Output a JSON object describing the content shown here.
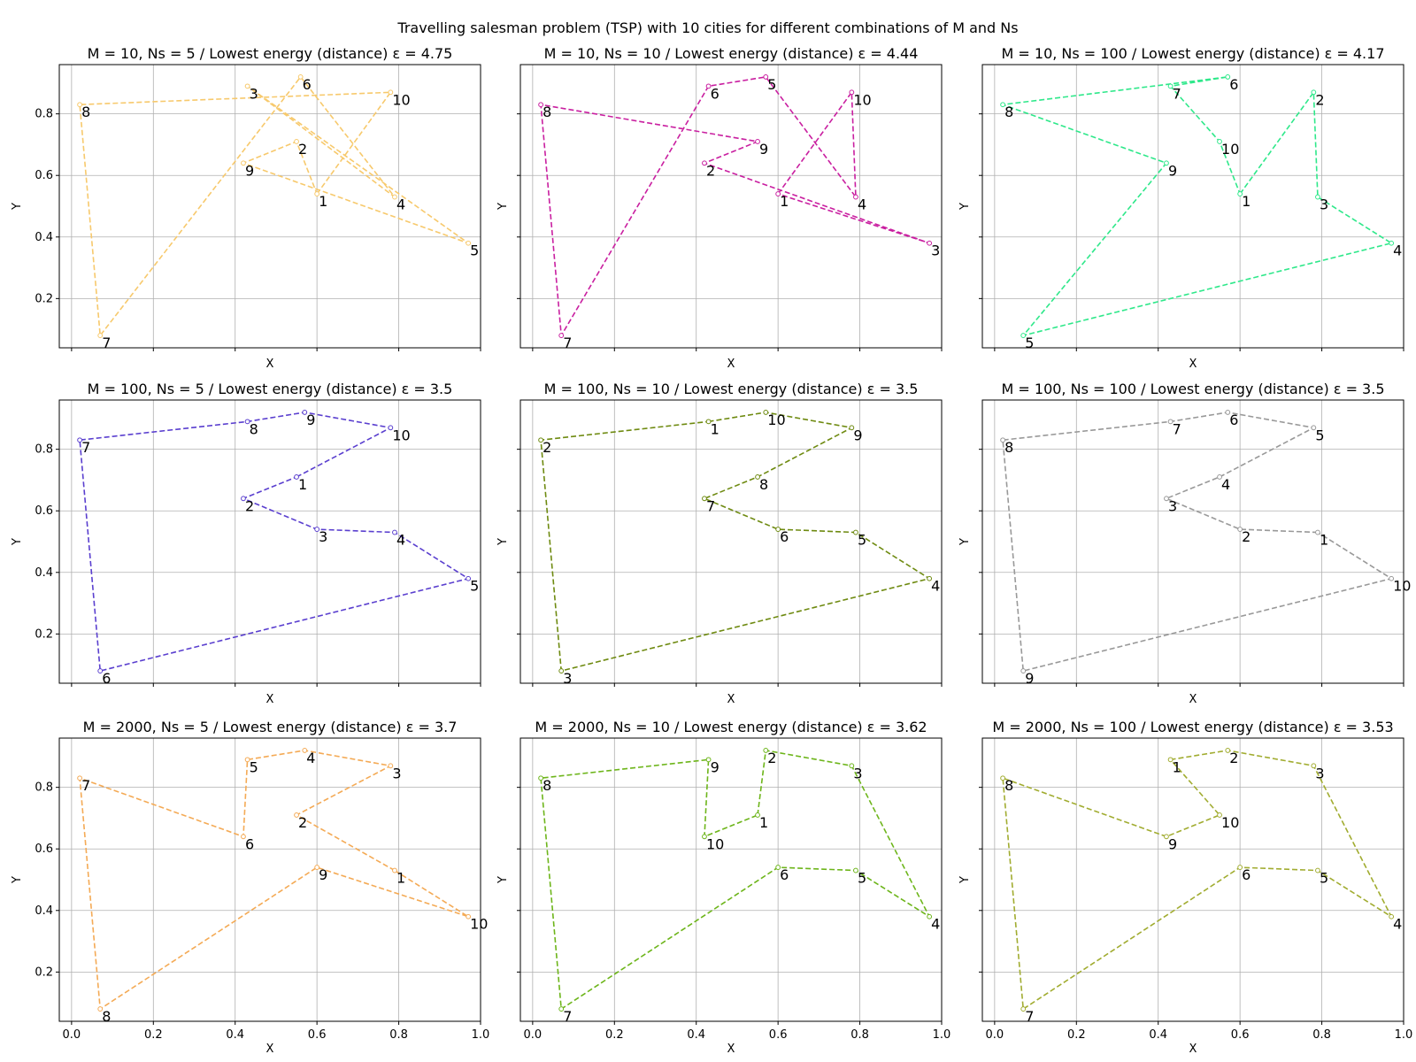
{
  "figure": {
    "title": "Travelling salesman problem (TSP) with 10 cities for different combinations of M and Ns",
    "x_ticks": [
      "0.0",
      "0.2",
      "0.4",
      "0.6",
      "0.8",
      "1.0"
    ],
    "y_ticks": [
      "0.2",
      "0.4",
      "0.6",
      "0.8"
    ]
  },
  "chart_data": [
    {
      "type": "line",
      "title": "M = 10, Ns = 5 / Lowest energy (distance) ε = 4.75",
      "xlabel": "X",
      "ylabel": "Y",
      "grid": true,
      "xlim": [
        -0.03,
        1.0
      ],
      "ylim": [
        0.04,
        0.96
      ],
      "color": "#f7c96c",
      "points": [
        {
          "label": "1",
          "x": 0.6,
          "y": 0.54
        },
        {
          "label": "10",
          "x": 0.78,
          "y": 0.87
        },
        {
          "label": "8",
          "x": 0.02,
          "y": 0.83
        },
        {
          "label": "7",
          "x": 0.07,
          "y": 0.08
        },
        {
          "label": "6",
          "x": 0.56,
          "y": 0.92
        },
        {
          "label": "4",
          "x": 0.79,
          "y": 0.53
        },
        {
          "label": "3",
          "x": 0.43,
          "y": 0.89
        },
        {
          "label": "5",
          "x": 0.97,
          "y": 0.38
        },
        {
          "label": "9",
          "x": 0.42,
          "y": 0.64
        },
        {
          "label": "2",
          "x": 0.55,
          "y": 0.71
        }
      ]
    },
    {
      "type": "line",
      "title": "M = 10, Ns = 10 / Lowest energy (distance) ε = 4.44",
      "xlabel": "X",
      "ylabel": "Y",
      "grid": true,
      "xlim": [
        -0.03,
        1.0
      ],
      "ylim": [
        0.04,
        0.96
      ],
      "color": "#c91fa0",
      "points": [
        {
          "label": "1",
          "x": 0.6,
          "y": 0.54
        },
        {
          "label": "10",
          "x": 0.78,
          "y": 0.87
        },
        {
          "label": "4",
          "x": 0.79,
          "y": 0.53
        },
        {
          "label": "5",
          "x": 0.57,
          "y": 0.92
        },
        {
          "label": "6",
          "x": 0.43,
          "y": 0.89
        },
        {
          "label": "7",
          "x": 0.07,
          "y": 0.08
        },
        {
          "label": "8",
          "x": 0.02,
          "y": 0.83
        },
        {
          "label": "9",
          "x": 0.55,
          "y": 0.71
        },
        {
          "label": "2",
          "x": 0.42,
          "y": 0.64
        },
        {
          "label": "3",
          "x": 0.97,
          "y": 0.38
        }
      ]
    },
    {
      "type": "line",
      "title": "M = 10, Ns = 100 / Lowest energy (distance) ε = 4.17",
      "xlabel": "X",
      "ylabel": "Y",
      "grid": true,
      "xlim": [
        -0.03,
        1.0
      ],
      "ylim": [
        0.04,
        0.96
      ],
      "color": "#2ee88a",
      "points": [
        {
          "label": "1",
          "x": 0.6,
          "y": 0.54
        },
        {
          "label": "2",
          "x": 0.78,
          "y": 0.87
        },
        {
          "label": "3",
          "x": 0.79,
          "y": 0.53
        },
        {
          "label": "4",
          "x": 0.97,
          "y": 0.38
        },
        {
          "label": "5",
          "x": 0.07,
          "y": 0.08
        },
        {
          "label": "9",
          "x": 0.42,
          "y": 0.64
        },
        {
          "label": "8",
          "x": 0.02,
          "y": 0.83
        },
        {
          "label": "6",
          "x": 0.57,
          "y": 0.92
        },
        {
          "label": "7",
          "x": 0.43,
          "y": 0.89
        },
        {
          "label": "10",
          "x": 0.55,
          "y": 0.71
        }
      ]
    },
    {
      "type": "line",
      "title": "M = 100, Ns = 5 / Lowest energy (distance) ε = 3.5",
      "xlabel": "X",
      "ylabel": "Y",
      "grid": true,
      "xlim": [
        -0.03,
        1.0
      ],
      "ylim": [
        0.04,
        0.96
      ],
      "color": "#5a3fcf",
      "points": [
        {
          "label": "1",
          "x": 0.55,
          "y": 0.71
        },
        {
          "label": "10",
          "x": 0.78,
          "y": 0.87
        },
        {
          "label": "9",
          "x": 0.57,
          "y": 0.92
        },
        {
          "label": "8",
          "x": 0.43,
          "y": 0.89
        },
        {
          "label": "7",
          "x": 0.02,
          "y": 0.83
        },
        {
          "label": "6",
          "x": 0.07,
          "y": 0.08
        },
        {
          "label": "5",
          "x": 0.97,
          "y": 0.38
        },
        {
          "label": "4",
          "x": 0.79,
          "y": 0.53
        },
        {
          "label": "3",
          "x": 0.6,
          "y": 0.54
        },
        {
          "label": "2",
          "x": 0.42,
          "y": 0.64
        }
      ]
    },
    {
      "type": "line",
      "title": "M = 100, Ns = 10 / Lowest energy (distance) ε = 3.5",
      "xlabel": "X",
      "ylabel": "Y",
      "grid": true,
      "xlim": [
        -0.03,
        1.0
      ],
      "ylim": [
        0.04,
        0.96
      ],
      "color": "#6e8a10",
      "points": [
        {
          "label": "1",
          "x": 0.43,
          "y": 0.89
        },
        {
          "label": "10",
          "x": 0.57,
          "y": 0.92
        },
        {
          "label": "9",
          "x": 0.78,
          "y": 0.87
        },
        {
          "label": "8",
          "x": 0.55,
          "y": 0.71
        },
        {
          "label": "7",
          "x": 0.42,
          "y": 0.64
        },
        {
          "label": "6",
          "x": 0.6,
          "y": 0.54
        },
        {
          "label": "5",
          "x": 0.79,
          "y": 0.53
        },
        {
          "label": "4",
          "x": 0.97,
          "y": 0.38
        },
        {
          "label": "3",
          "x": 0.07,
          "y": 0.08
        },
        {
          "label": "2",
          "x": 0.02,
          "y": 0.83
        }
      ]
    },
    {
      "type": "line",
      "title": "M = 100, Ns = 100 / Lowest energy (distance) ε = 3.5",
      "xlabel": "X",
      "ylabel": "Y",
      "grid": true,
      "xlim": [
        -0.03,
        1.0
      ],
      "ylim": [
        0.04,
        0.96
      ],
      "color": "#999999",
      "points": [
        {
          "label": "1",
          "x": 0.79,
          "y": 0.53
        },
        {
          "label": "2",
          "x": 0.6,
          "y": 0.54
        },
        {
          "label": "3",
          "x": 0.42,
          "y": 0.64
        },
        {
          "label": "4",
          "x": 0.55,
          "y": 0.71
        },
        {
          "label": "5",
          "x": 0.78,
          "y": 0.87
        },
        {
          "label": "6",
          "x": 0.57,
          "y": 0.92
        },
        {
          "label": "7",
          "x": 0.43,
          "y": 0.89
        },
        {
          "label": "8",
          "x": 0.02,
          "y": 0.83
        },
        {
          "label": "9",
          "x": 0.07,
          "y": 0.08
        },
        {
          "label": "10",
          "x": 0.97,
          "y": 0.38
        }
      ]
    },
    {
      "type": "line",
      "title": "M = 2000, Ns = 5 / Lowest energy (distance) ε = 3.7",
      "xlabel": "X",
      "ylabel": "Y",
      "grid": true,
      "xlim": [
        -0.03,
        1.0
      ],
      "ylim": [
        0.04,
        0.96
      ],
      "color": "#f4aa55",
      "points": [
        {
          "label": "1",
          "x": 0.79,
          "y": 0.53
        },
        {
          "label": "2",
          "x": 0.55,
          "y": 0.71
        },
        {
          "label": "3",
          "x": 0.78,
          "y": 0.87
        },
        {
          "label": "4",
          "x": 0.57,
          "y": 0.92
        },
        {
          "label": "5",
          "x": 0.43,
          "y": 0.89
        },
        {
          "label": "6",
          "x": 0.42,
          "y": 0.64
        },
        {
          "label": "7",
          "x": 0.02,
          "y": 0.83
        },
        {
          "label": "8",
          "x": 0.07,
          "y": 0.08
        },
        {
          "label": "9",
          "x": 0.6,
          "y": 0.54
        },
        {
          "label": "10",
          "x": 0.97,
          "y": 0.38
        }
      ]
    },
    {
      "type": "line",
      "title": "M = 2000, Ns = 10 / Lowest energy (distance) ε = 3.62",
      "xlabel": "X",
      "ylabel": "Y",
      "grid": true,
      "xlim": [
        -0.03,
        1.0
      ],
      "ylim": [
        0.04,
        0.96
      ],
      "color": "#6db51a",
      "points": [
        {
          "label": "1",
          "x": 0.55,
          "y": 0.71
        },
        {
          "label": "2",
          "x": 0.57,
          "y": 0.92
        },
        {
          "label": "3",
          "x": 0.78,
          "y": 0.87
        },
        {
          "label": "4",
          "x": 0.97,
          "y": 0.38
        },
        {
          "label": "5",
          "x": 0.79,
          "y": 0.53
        },
        {
          "label": "6",
          "x": 0.6,
          "y": 0.54
        },
        {
          "label": "7",
          "x": 0.07,
          "y": 0.08
        },
        {
          "label": "8",
          "x": 0.02,
          "y": 0.83
        },
        {
          "label": "9",
          "x": 0.43,
          "y": 0.89
        },
        {
          "label": "10",
          "x": 0.42,
          "y": 0.64
        }
      ]
    },
    {
      "type": "line",
      "title": "M = 2000, Ns = 100 / Lowest energy (distance) ε = 3.53",
      "xlabel": "X",
      "ylabel": "Y",
      "grid": true,
      "xlim": [
        -0.03,
        1.0
      ],
      "ylim": [
        0.04,
        0.96
      ],
      "color": "#a1ac30",
      "points": [
        {
          "label": "1",
          "x": 0.43,
          "y": 0.89
        },
        {
          "label": "2",
          "x": 0.57,
          "y": 0.92
        },
        {
          "label": "3",
          "x": 0.78,
          "y": 0.87
        },
        {
          "label": "4",
          "x": 0.97,
          "y": 0.38
        },
        {
          "label": "5",
          "x": 0.79,
          "y": 0.53
        },
        {
          "label": "6",
          "x": 0.6,
          "y": 0.54
        },
        {
          "label": "7",
          "x": 0.07,
          "y": 0.08
        },
        {
          "label": "8",
          "x": 0.02,
          "y": 0.83
        },
        {
          "label": "9",
          "x": 0.42,
          "y": 0.64
        },
        {
          "label": "10",
          "x": 0.55,
          "y": 0.71
        }
      ]
    }
  ]
}
